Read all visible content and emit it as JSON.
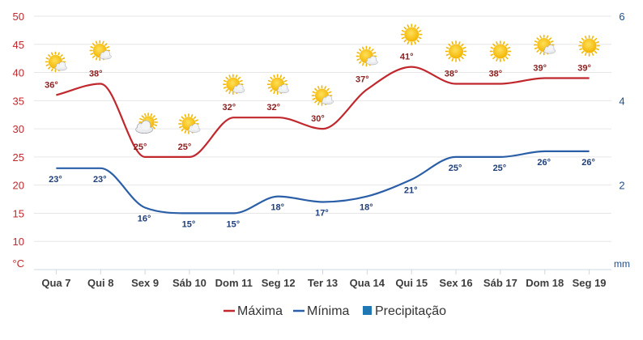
{
  "chart_data": {
    "type": "line",
    "categories": [
      "Qua 7",
      "Qui 8",
      "Sex 9",
      "Sáb 10",
      "Dom 11",
      "Seg 12",
      "Ter 13",
      "Qua 14",
      "Qui 15",
      "Sex 16",
      "Sáb 17",
      "Dom 18",
      "Seg 19"
    ],
    "series": [
      {
        "name": "Máxima",
        "color": "#c0282d",
        "values": [
          36,
          38,
          25,
          25,
          32,
          32,
          30,
          37,
          41,
          38,
          38,
          39,
          39
        ],
        "labels": [
          "36°",
          "38°",
          "25°",
          "25°",
          "32°",
          "32°",
          "30°",
          "37°",
          "41°",
          "38°",
          "38°",
          "39°",
          "39°"
        ],
        "label_color": "#8b1e1e"
      },
      {
        "name": "Mínima",
        "color": "#2a5fa8",
        "values": [
          23,
          23,
          16,
          15,
          15,
          18,
          17,
          18,
          21,
          25,
          25,
          26,
          26
        ],
        "labels": [
          "23°",
          "23°",
          "16°",
          "15°",
          "15°",
          "18°",
          "17°",
          "18°",
          "21°",
          "25°",
          "25°",
          "26°",
          "26°"
        ],
        "label_color": "#1f3f7a"
      },
      {
        "name": "Precipitação",
        "color": "#1f77b4",
        "values": [
          0,
          0,
          0,
          0,
          0,
          0,
          0,
          0,
          0,
          0,
          0,
          0,
          0
        ]
      }
    ],
    "weather_icons": [
      "sun-cloud",
      "sun-cloud",
      "cloud-sun",
      "sun-cloud",
      "sun-cloud",
      "sun-cloud",
      "sun-cloud",
      "sun-cloud",
      "sun",
      "sun",
      "sun",
      "sun-cloud",
      "sun"
    ],
    "y_left": {
      "unit": "°C",
      "ticks": [
        "10",
        "15",
        "20",
        "25",
        "30",
        "35",
        "40",
        "45",
        "50"
      ],
      "range": [
        5,
        50
      ],
      "color": "#c0282d"
    },
    "y_right": {
      "unit": "mm",
      "ticks": [
        "2",
        "4",
        "6"
      ],
      "range": [
        0,
        6
      ],
      "color": "#1f4f8b"
    },
    "grid": true,
    "legend_position": "bottom"
  }
}
